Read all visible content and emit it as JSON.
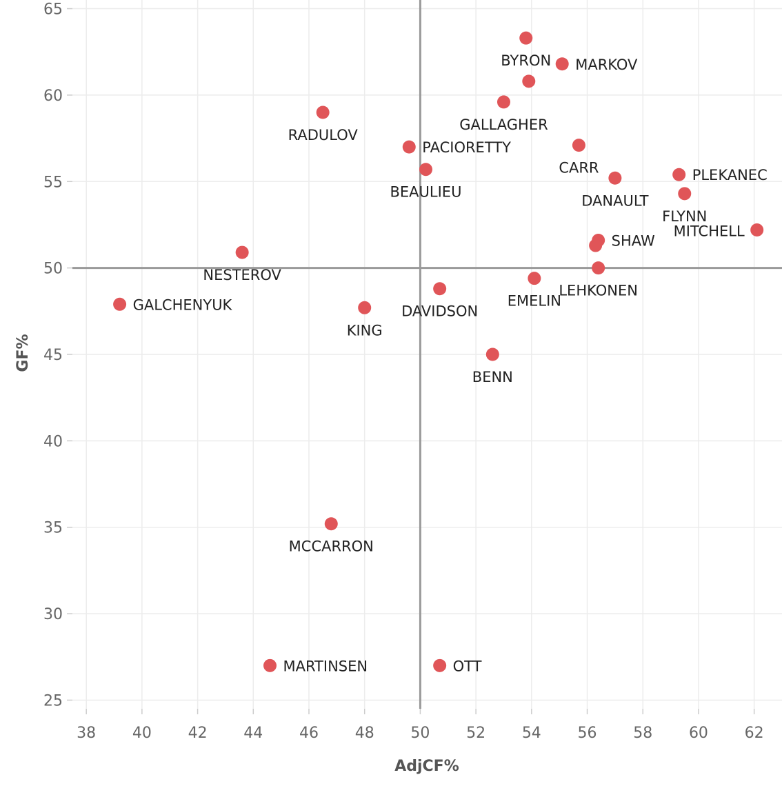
{
  "chart_data": {
    "type": "scatter",
    "title": "",
    "xlabel": "AdjCF%",
    "ylabel": "GF%",
    "xlim": [
      37.5,
      63
    ],
    "ylim": [
      24.5,
      65.5
    ],
    "x_ticks": [
      38,
      40,
      42,
      44,
      46,
      48,
      50,
      52,
      54,
      56,
      58,
      60,
      62
    ],
    "y_ticks": [
      25,
      30,
      35,
      40,
      45,
      50,
      55,
      60,
      65
    ],
    "reference_lines": {
      "x": 50,
      "y": 50
    },
    "point_color": "#e05558",
    "points": [
      {
        "name": "BYRON",
        "x": 53.8,
        "y": 63.3,
        "label_pos": "below"
      },
      {
        "name": "MARKOV",
        "x": 55.1,
        "y": 61.8,
        "label_pos": "right"
      },
      {
        "name": "GALLAGHER",
        "x": 53.0,
        "y": 59.6,
        "label_pos": "below"
      },
      {
        "name": "RADULOV",
        "x": 46.5,
        "y": 59.0,
        "label_pos": "below"
      },
      {
        "name": "PACIORETTY",
        "x": 49.6,
        "y": 57.0,
        "label_pos": "right"
      },
      {
        "name": "BEAULIEU",
        "x": 50.2,
        "y": 55.7,
        "label_pos": "below"
      },
      {
        "name": "CARR",
        "x": 55.7,
        "y": 57.1,
        "label_pos": "below"
      },
      {
        "name": "DANAULT",
        "x": 57.0,
        "y": 55.2,
        "label_pos": "below"
      },
      {
        "name": "PLEKANEC",
        "x": 59.3,
        "y": 55.4,
        "label_pos": "right"
      },
      {
        "name": "FLYNN",
        "x": 59.5,
        "y": 54.3,
        "label_pos": "below"
      },
      {
        "name": "MITCHELL",
        "x": 62.1,
        "y": 52.2,
        "label_pos": "left"
      },
      {
        "name": "SHAW",
        "x": 56.4,
        "y": 51.6,
        "label_pos": "right"
      },
      {
        "name": "LEHKONEN",
        "x": 56.4,
        "y": 50.0,
        "label_pos": "below"
      },
      {
        "name": "NESTEROV",
        "x": 43.6,
        "y": 50.9,
        "label_pos": "below"
      },
      {
        "name": "GALCHENYUK",
        "x": 39.2,
        "y": 47.9,
        "label_pos": "right"
      },
      {
        "name": "KING",
        "x": 48.0,
        "y": 47.7,
        "label_pos": "below"
      },
      {
        "name": "DAVIDSON",
        "x": 50.7,
        "y": 48.8,
        "label_pos": "below"
      },
      {
        "name": "EMELIN",
        "x": 54.1,
        "y": 49.4,
        "label_pos": "below"
      },
      {
        "name": "BENN",
        "x": 52.6,
        "y": 45.0,
        "label_pos": "below"
      },
      {
        "name": "MCCARRON",
        "x": 46.8,
        "y": 35.2,
        "label_pos": "below"
      },
      {
        "name": "MARTINSEN",
        "x": 44.6,
        "y": 27.0,
        "label_pos": "right"
      },
      {
        "name": "OTT",
        "x": 50.7,
        "y": 27.0,
        "label_pos": "right"
      },
      {
        "name": "",
        "x": 53.9,
        "y": 60.8,
        "label_pos": "none"
      },
      {
        "name": "",
        "x": 56.3,
        "y": 51.3,
        "label_pos": "none"
      }
    ]
  }
}
